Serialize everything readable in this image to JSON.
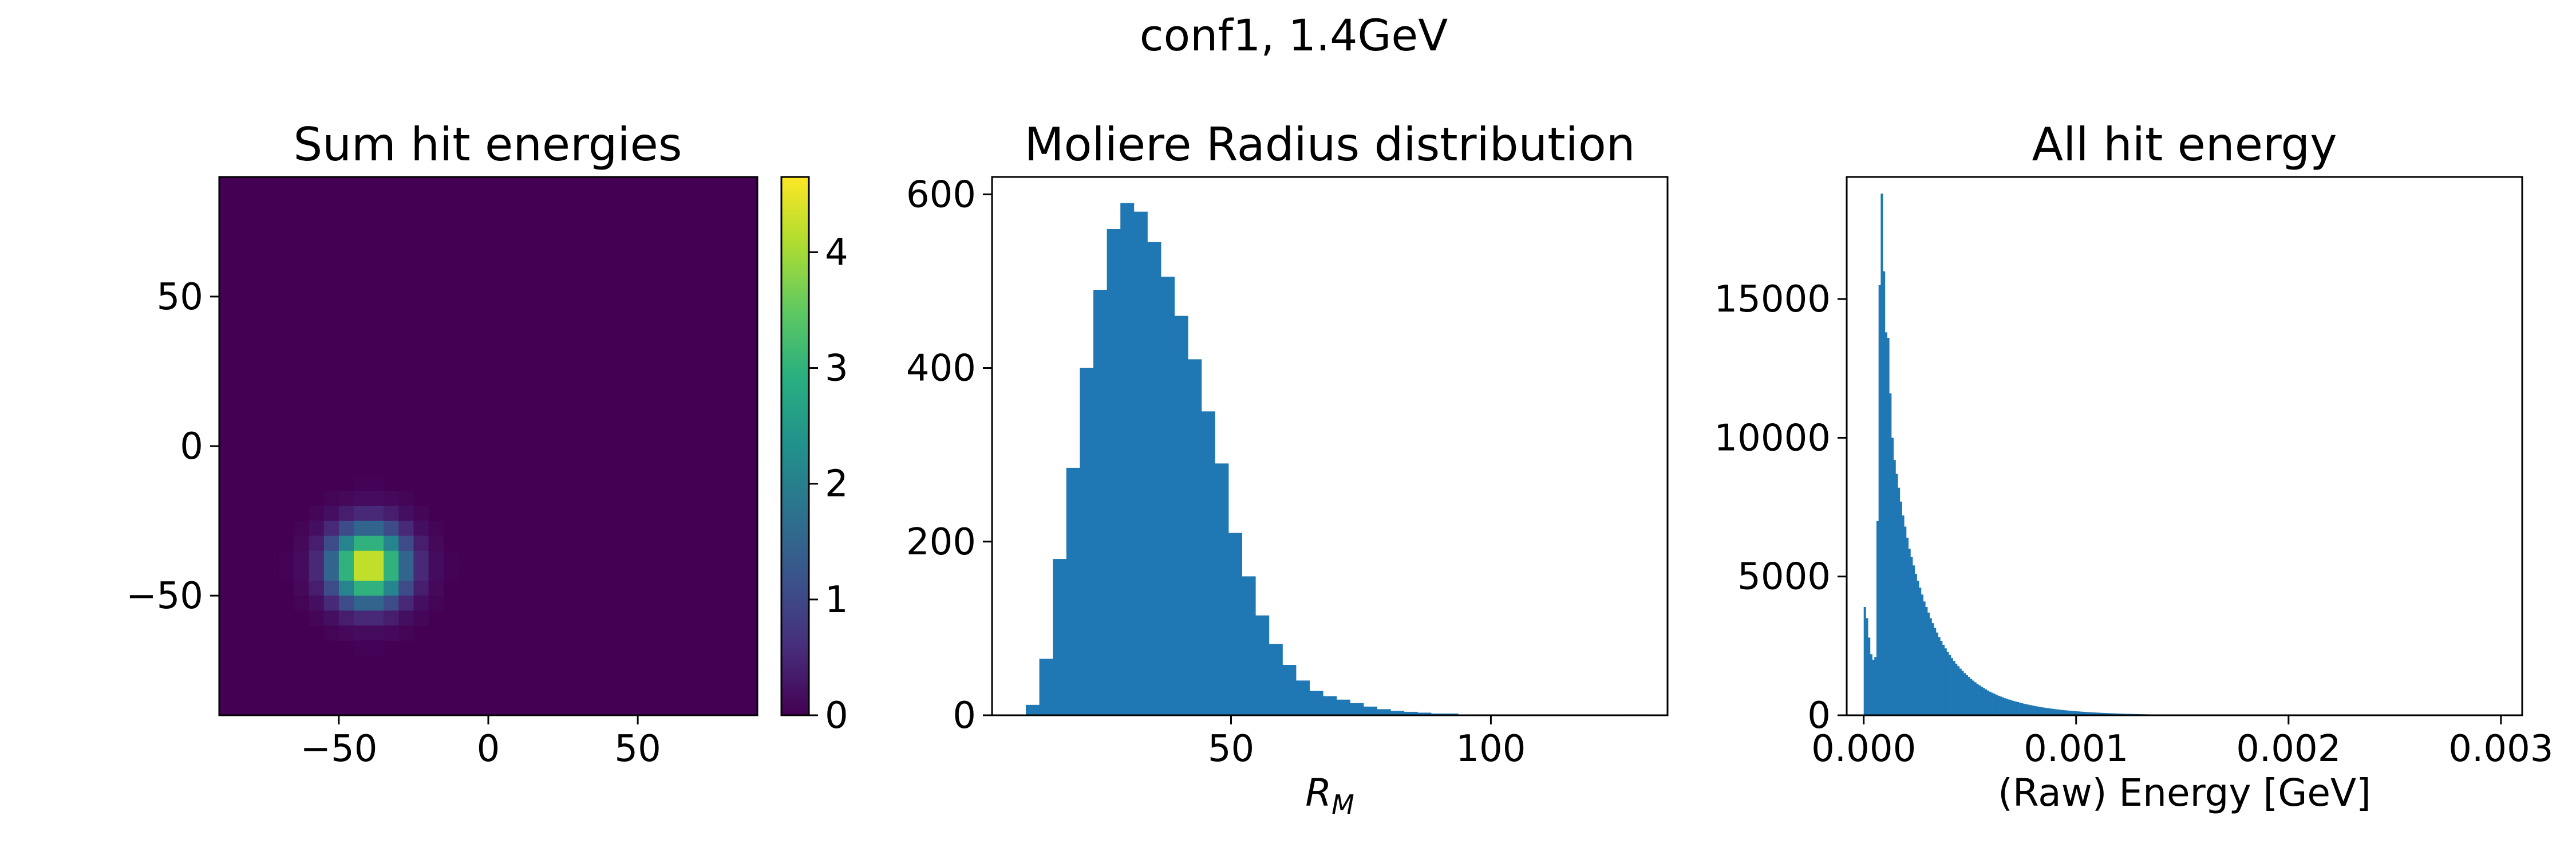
{
  "figure": {
    "suptitle": "conf1, 1.4GeV"
  },
  "chart_data": [
    {
      "type": "heatmap",
      "title": "Sum hit energies",
      "xlim": [
        -90,
        90
      ],
      "ylim": [
        -90,
        90
      ],
      "xticks": [
        -50,
        0,
        50
      ],
      "yticks": [
        50,
        0,
        -50
      ],
      "xtick_labels": [
        "−50",
        "0",
        "50"
      ],
      "ytick_labels": [
        "50",
        "0",
        "−50"
      ],
      "colormap": "viridis",
      "grid_cells": 36,
      "peak": {
        "x": -40,
        "y": -40,
        "value": 4.6,
        "sigma": 8.5
      },
      "colorbar": {
        "min": 0,
        "max": 4.65,
        "ticks": [
          0,
          1,
          2,
          3,
          4
        ],
        "tick_labels": [
          "0",
          "1",
          "2",
          "3",
          "4"
        ]
      },
      "background_color": "#440154"
    },
    {
      "type": "bar",
      "title": "Moliere Radius distribution",
      "xlabel_base": "R",
      "xlabel_sub": "M",
      "ylabel": "",
      "xlim": [
        4,
        134
      ],
      "ylim": [
        0,
        620
      ],
      "xticks": [
        50,
        100
      ],
      "yticks": [
        0,
        200,
        400,
        600
      ],
      "xtick_labels": [
        "50",
        "100"
      ],
      "ytick_labels": [
        "0",
        "200",
        "400",
        "600"
      ],
      "bin_width": 2.6,
      "bin_start": 10.5,
      "values": [
        12,
        65,
        180,
        285,
        400,
        490,
        560,
        590,
        580,
        545,
        505,
        460,
        410,
        350,
        290,
        210,
        160,
        115,
        82,
        58,
        40,
        28,
        22,
        18,
        14,
        10,
        7,
        5,
        4,
        3,
        2,
        2,
        1,
        1,
        1,
        0,
        0,
        1,
        1,
        1,
        0,
        0,
        0,
        0,
        1,
        1,
        0,
        0,
        0,
        0
      ],
      "color": "#1f77b4"
    },
    {
      "type": "bar",
      "title": "All hit energy",
      "xlabel": "(Raw) Energy [GeV]",
      "ylabel": "",
      "xlim": [
        -8e-05,
        0.0031
      ],
      "ylim": [
        0,
        19400
      ],
      "xticks": [
        0.0,
        0.001,
        0.002,
        0.003
      ],
      "yticks": [
        0,
        5000,
        10000,
        15000
      ],
      "xtick_labels": [
        "0.000",
        "0.001",
        "0.002",
        "0.003"
      ],
      "ytick_labels": [
        "0",
        "5000",
        "10000",
        "15000"
      ],
      "bin_width": 1e-05,
      "bin_start": 0.0,
      "values": [
        3900,
        3500,
        2800,
        2200,
        2000,
        2100,
        7000,
        15500,
        18800,
        16000,
        13800,
        13600,
        11600,
        10000,
        9200,
        8700,
        8200,
        7700,
        7200,
        6800,
        6400,
        6000,
        5700,
        5400,
        5100,
        4850,
        4600,
        4350,
        4100,
        3900,
        3700,
        3500,
        3320,
        3150,
        2980,
        2820,
        2680,
        2540,
        2410,
        2290,
        2170,
        2060,
        1960,
        1860,
        1770,
        1680,
        1600,
        1520,
        1450,
        1380,
        1310,
        1250,
        1190,
        1130,
        1080,
        1030,
        980,
        935,
        890,
        850,
        810,
        775,
        740,
        705,
        675,
        645,
        615,
        590,
        565,
        540,
        515,
        495,
        475,
        455,
        435,
        415,
        400,
        382,
        366,
        350,
        335,
        321,
        307,
        294,
        281,
        269,
        258,
        247,
        237,
        227,
        217,
        208,
        199,
        191,
        183,
        175,
        168,
        161,
        154,
        148,
        142,
        136,
        130,
        125,
        120,
        115,
        110,
        105,
        101,
        97,
        93,
        89,
        85,
        81,
        78,
        75,
        72,
        69,
        66,
        63,
        60,
        58,
        55,
        53,
        51,
        49,
        47,
        45,
        43,
        41,
        39,
        37,
        36,
        34,
        33,
        31,
        30,
        29,
        28,
        27,
        26,
        25,
        24,
        23,
        22,
        21,
        20,
        19,
        18,
        17,
        16,
        15,
        14,
        14,
        13,
        12,
        12,
        11,
        10,
        10,
        9,
        9,
        8,
        8,
        7,
        7,
        7,
        6,
        6,
        6,
        5,
        5,
        5,
        5,
        4,
        4,
        4,
        4,
        3,
        3,
        3,
        3,
        3,
        2,
        2,
        2,
        2,
        2,
        2,
        2,
        2,
        2,
        1,
        1,
        1,
        1,
        1,
        1,
        1,
        1,
        1,
        1,
        1,
        1,
        1,
        1,
        1,
        1,
        1,
        1,
        1,
        1,
        1,
        1,
        1,
        1,
        1,
        1,
        1,
        1,
        1,
        1,
        1,
        1,
        1,
        1,
        1,
        1,
        1,
        1,
        1,
        1,
        1,
        1,
        1,
        1,
        1,
        1,
        1,
        1,
        1,
        1,
        1,
        1,
        1,
        1,
        1,
        1,
        1,
        1,
        1,
        1,
        1,
        1,
        1,
        1,
        1,
        1,
        1,
        1,
        1,
        1,
        1,
        1,
        1,
        1,
        1,
        1,
        1,
        1,
        1,
        1,
        1,
        1,
        1,
        1,
        1,
        1,
        1,
        1,
        1,
        1,
        1,
        1,
        1,
        1,
        1,
        1,
        1,
        1,
        1,
        1,
        1,
        1,
        1
      ],
      "color": "#1f77b4"
    }
  ]
}
